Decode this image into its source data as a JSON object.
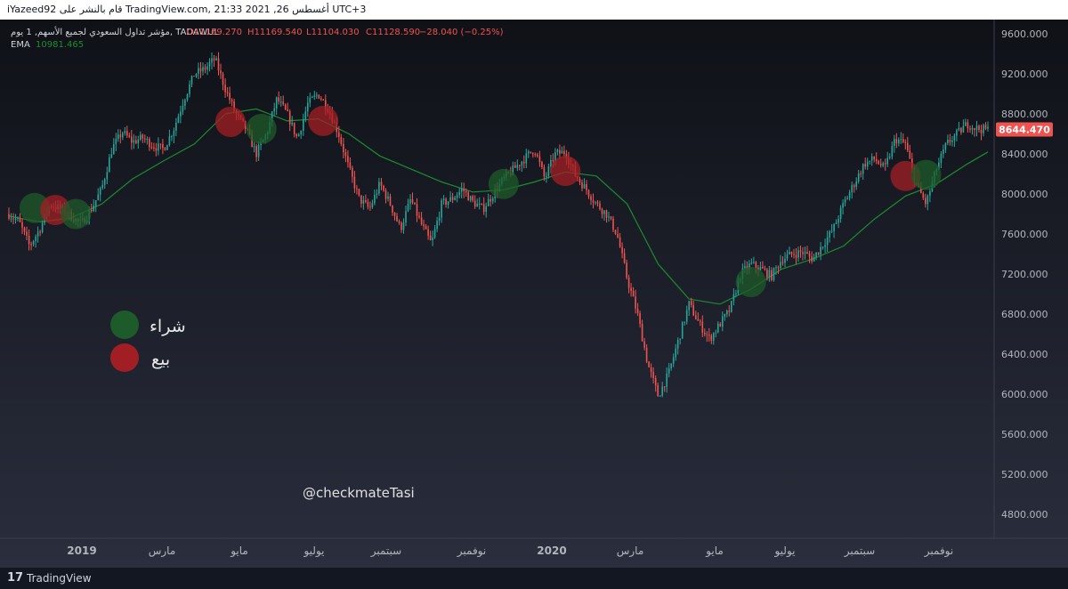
{
  "header": {
    "text": "iYazeed92 قام بالنشر على TradingView.com, 21:33 2021 ,26 أغسطس UTC+3"
  },
  "legend": {
    "symbol": "مؤشر تداول السعودي لجميع الأسهم, 1 يوم, TADAWUL",
    "open": "O11169.270",
    "high": "H11169.540",
    "low": "L11104.030",
    "close": "C11128.590",
    "change": "−28.040 (−0.25%)",
    "ema_label": "EMA",
    "ema_value": "10981.465"
  },
  "price_tag": "8644.470",
  "watermark": "@checkmateTasi",
  "signal_legend": {
    "buy": "شراء",
    "sell": "بيع"
  },
  "footer": {
    "logo": "17",
    "brand": "TradingView"
  },
  "colors": {
    "background": "#1e2230",
    "up": "#26a69a",
    "down": "#ef5350",
    "ema": "#1b8c2e",
    "buy_marker": "#1e5b2a",
    "sell_marker": "#a11f24",
    "price_tag": "#ef5350"
  },
  "chart_data": {
    "type": "line",
    "series_type": "candlestick",
    "ylim": [
      4600,
      9700
    ],
    "y_ticks": [
      9600,
      9200,
      8800,
      8400,
      8000,
      7600,
      7200,
      6800,
      6400,
      6000,
      5600,
      5200,
      4800
    ],
    "y_tick_labels": [
      "9600.000",
      "9200.000",
      "8800.000",
      "8400.000",
      "8000.000",
      "7600.000",
      "7200.000",
      "6800.000",
      "6400.000",
      "6000.000",
      "5600.000",
      "5200.000",
      "4800.000"
    ],
    "x_labels": [
      "2019",
      "مارس",
      "مايو",
      "يوليو",
      "سبتمبر",
      "نوفمبر",
      "2020",
      "مارس",
      "مايو",
      "يوليو",
      "سبتمبر",
      "نوفمبر"
    ],
    "x_label_bold": [
      true,
      false,
      false,
      false,
      false,
      false,
      true,
      false,
      false,
      false,
      false,
      false
    ],
    "price_path": [
      [
        0,
        7800
      ],
      [
        1,
        7720
      ],
      [
        2,
        7480
      ],
      [
        3,
        7650
      ],
      [
        4,
        7900
      ],
      [
        5,
        7850
      ],
      [
        6,
        7780
      ],
      [
        7,
        7700
      ],
      [
        8,
        7850
      ],
      [
        9,
        8050
      ],
      [
        10,
        8450
      ],
      [
        11,
        8620
      ],
      [
        12,
        8520
      ],
      [
        13,
        8560
      ],
      [
        14,
        8480
      ],
      [
        15,
        8450
      ],
      [
        16,
        8650
      ],
      [
        17,
        8950
      ],
      [
        18,
        9200
      ],
      [
        19,
        9250
      ],
      [
        20,
        9350
      ],
      [
        21,
        9050
      ],
      [
        22,
        8800
      ],
      [
        23,
        8650
      ],
      [
        24,
        8400
      ],
      [
        25,
        8600
      ],
      [
        26,
        8950
      ],
      [
        27,
        8800
      ],
      [
        28,
        8550
      ],
      [
        29,
        8900
      ],
      [
        30,
        9000
      ],
      [
        31,
        8850
      ],
      [
        32,
        8600
      ],
      [
        33,
        8250
      ],
      [
        34,
        7950
      ],
      [
        35,
        7850
      ],
      [
        36,
        8100
      ],
      [
        37,
        7900
      ],
      [
        38,
        7650
      ],
      [
        39,
        7950
      ],
      [
        40,
        7700
      ],
      [
        41,
        7500
      ],
      [
        42,
        7900
      ],
      [
        43,
        7950
      ],
      [
        44,
        8050
      ],
      [
        45,
        7920
      ],
      [
        46,
        7850
      ],
      [
        47,
        8000
      ],
      [
        48,
        8150
      ],
      [
        49,
        8250
      ],
      [
        50,
        8350
      ],
      [
        51,
        8450
      ],
      [
        52,
        8150
      ],
      [
        53,
        8400
      ],
      [
        54,
        8420
      ],
      [
        55,
        8180
      ],
      [
        56,
        8050
      ],
      [
        57,
        7900
      ],
      [
        58,
        7800
      ],
      [
        59,
        7600
      ],
      [
        60,
        7150
      ],
      [
        61,
        6800
      ],
      [
        62,
        6300
      ],
      [
        63,
        5980
      ],
      [
        64,
        6200
      ],
      [
        65,
        6550
      ],
      [
        66,
        6900
      ],
      [
        67,
        6700
      ],
      [
        68,
        6550
      ],
      [
        69,
        6700
      ],
      [
        70,
        6850
      ],
      [
        71,
        7200
      ],
      [
        72,
        7300
      ],
      [
        73,
        7250
      ],
      [
        74,
        7180
      ],
      [
        75,
        7350
      ],
      [
        76,
        7400
      ],
      [
        77,
        7420
      ],
      [
        78,
        7350
      ],
      [
        79,
        7500
      ],
      [
        80,
        7650
      ],
      [
        81,
        7900
      ],
      [
        82,
        8100
      ],
      [
        83,
        8300
      ],
      [
        84,
        8350
      ],
      [
        85,
        8250
      ],
      [
        86,
        8550
      ],
      [
        87,
        8500
      ],
      [
        88,
        8100
      ],
      [
        89,
        7900
      ],
      [
        90,
        8250
      ],
      [
        91,
        8500
      ],
      [
        92,
        8600
      ],
      [
        93,
        8700
      ],
      [
        94,
        8650
      ],
      [
        95,
        8644
      ]
    ],
    "ema_path": [
      [
        0,
        7780
      ],
      [
        3,
        7720
      ],
      [
        6,
        7760
      ],
      [
        9,
        7900
      ],
      [
        12,
        8150
      ],
      [
        15,
        8330
      ],
      [
        18,
        8500
      ],
      [
        21,
        8800
      ],
      [
        24,
        8850
      ],
      [
        27,
        8730
      ],
      [
        30,
        8750
      ],
      [
        33,
        8600
      ],
      [
        36,
        8380
      ],
      [
        39,
        8250
      ],
      [
        42,
        8120
      ],
      [
        45,
        8020
      ],
      [
        48,
        8040
      ],
      [
        51,
        8120
      ],
      [
        54,
        8220
      ],
      [
        57,
        8180
      ],
      [
        60,
        7900
      ],
      [
        63,
        7300
      ],
      [
        66,
        6950
      ],
      [
        69,
        6900
      ],
      [
        72,
        7050
      ],
      [
        75,
        7250
      ],
      [
        78,
        7350
      ],
      [
        81,
        7480
      ],
      [
        84,
        7750
      ],
      [
        87,
        7980
      ],
      [
        90,
        8100
      ],
      [
        93,
        8300
      ],
      [
        95,
        8420
      ]
    ],
    "signals": [
      {
        "type": "buy",
        "x": 2.5,
        "y": 7860
      },
      {
        "type": "sell",
        "x": 4.5,
        "y": 7840
      },
      {
        "type": "buy",
        "x": 6.5,
        "y": 7800
      },
      {
        "type": "sell",
        "x": 21.5,
        "y": 8720
      },
      {
        "type": "buy",
        "x": 24.5,
        "y": 8650
      },
      {
        "type": "sell",
        "x": 30.5,
        "y": 8730
      },
      {
        "type": "buy",
        "x": 48,
        "y": 8100
      },
      {
        "type": "sell",
        "x": 54,
        "y": 8230
      },
      {
        "type": "buy",
        "x": 72,
        "y": 7120
      },
      {
        "type": "sell",
        "x": 87,
        "y": 8180
      },
      {
        "type": "buy",
        "x": 89,
        "y": 8190
      }
    ]
  }
}
